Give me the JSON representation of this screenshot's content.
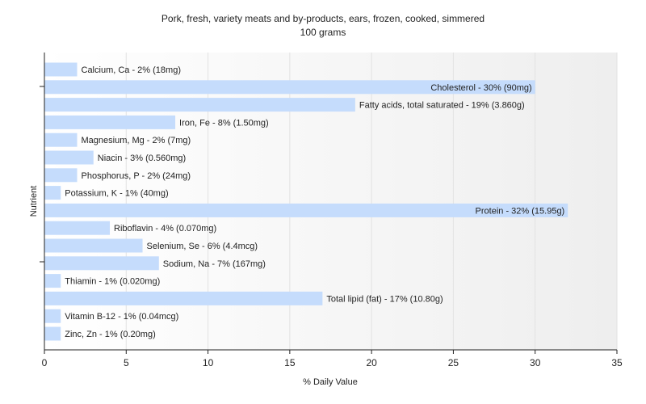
{
  "chart_data": {
    "type": "bar",
    "orientation": "horizontal",
    "title": "Pork, fresh, variety meats and by-products, ears, frozen, cooked, simmered",
    "subtitle": "100 grams",
    "xlabel": "% Daily Value",
    "ylabel": "Nutrient",
    "xlim": [
      0,
      35
    ],
    "xticks": [
      0,
      5,
      10,
      15,
      20,
      25,
      30,
      35
    ],
    "grid": true,
    "bar_color": "#c5dcfc",
    "categories": [
      "Calcium, Ca",
      "Cholesterol",
      "Fatty acids, total saturated",
      "Iron, Fe",
      "Magnesium, Mg",
      "Niacin",
      "Phosphorus, P",
      "Potassium, K",
      "Protein",
      "Riboflavin",
      "Selenium, Se",
      "Sodium, Na",
      "Thiamin",
      "Total lipid (fat)",
      "Vitamin B-12",
      "Zinc, Zn"
    ],
    "values": [
      2,
      30,
      19,
      8,
      2,
      3,
      2,
      1,
      32,
      4,
      6,
      7,
      1,
      17,
      1,
      1
    ],
    "labels": [
      "Calcium, Ca - 2% (18mg)",
      "Cholesterol - 30% (90mg)",
      "Fatty acids, total saturated - 19% (3.860g)",
      "Iron, Fe - 8% (1.50mg)",
      "Magnesium, Mg - 2% (7mg)",
      "Niacin - 3% (0.560mg)",
      "Phosphorus, P - 2% (24mg)",
      "Potassium, K - 1% (40mg)",
      "Protein - 32% (15.95g)",
      "Riboflavin - 4% (0.070mg)",
      "Selenium, Se - 6% (4.4mcg)",
      "Sodium, Na - 7% (167mg)",
      "Thiamin - 1% (0.020mg)",
      "Total lipid (fat) - 17% (10.80g)",
      "Vitamin B-12 - 1% (0.04mcg)",
      "Zinc, Zn - 1% (0.20mg)"
    ]
  }
}
